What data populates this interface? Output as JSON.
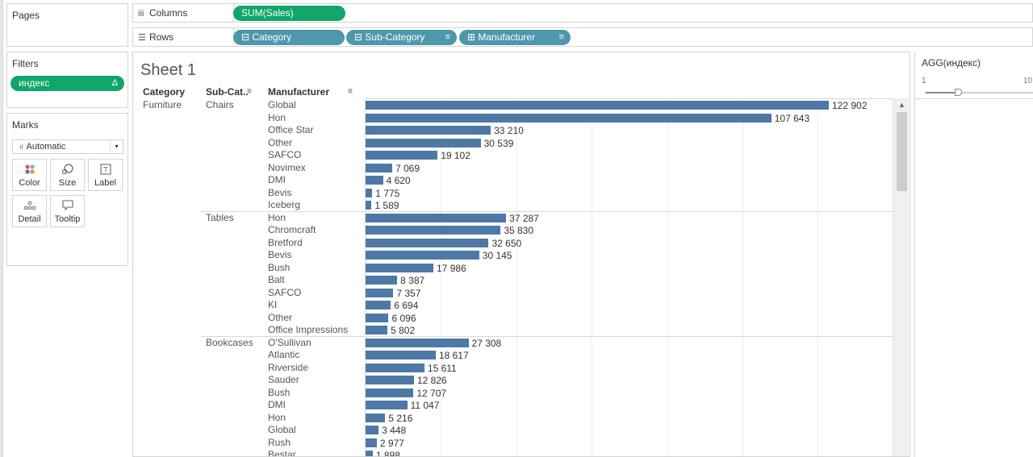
{
  "pages": {
    "title": "Pages"
  },
  "filters": {
    "title": "Filters",
    "pill": "индекс",
    "pill_icon": "Δ"
  },
  "marks": {
    "title": "Marks",
    "type": "Automatic",
    "buttons": {
      "color": "Color",
      "size": "Size",
      "label": "Label",
      "detail": "Detail",
      "tooltip": "Tooltip"
    }
  },
  "shelves": {
    "columns": {
      "label": "Columns",
      "pill": "SUM(Sales)"
    },
    "rows": {
      "label": "Rows",
      "pills": [
        "Category",
        "Sub-Category",
        "Manufacturer"
      ]
    }
  },
  "sheet": {
    "title": "Sheet 1",
    "headers": {
      "category": "Category",
      "subcategory": "Sub-Cat..",
      "manufacturer": "Manufacturer"
    }
  },
  "slider": {
    "title": "AGG(индекс)",
    "min": "1",
    "max": "10",
    "value_fraction": 0.3
  },
  "colors": {
    "bar": "#4e79a7",
    "pill_green": "#10a66a",
    "pill_blue": "#4e97ad"
  },
  "chart_data": {
    "type": "bar",
    "orientation": "horizontal",
    "measure": "SUM(Sales)",
    "category": "Furniture",
    "x_range": [
      0,
      130000
    ],
    "grid": true,
    "groups": [
      {
        "subcategory": "Chairs",
        "rows": [
          {
            "manufacturer": "Global",
            "value": 122902,
            "label": "122 902"
          },
          {
            "manufacturer": "Hon",
            "value": 107643,
            "label": "107 643"
          },
          {
            "manufacturer": "Office Star",
            "value": 33210,
            "label": "33 210"
          },
          {
            "manufacturer": "Other",
            "value": 30539,
            "label": "30 539"
          },
          {
            "manufacturer": "SAFCO",
            "value": 19102,
            "label": "19 102"
          },
          {
            "manufacturer": "Novimex",
            "value": 7069,
            "label": "7 069"
          },
          {
            "manufacturer": "DMI",
            "value": 4620,
            "label": "4 620"
          },
          {
            "manufacturer": "Bevis",
            "value": 1775,
            "label": "1 775"
          },
          {
            "manufacturer": "Iceberg",
            "value": 1589,
            "label": "1 589"
          }
        ]
      },
      {
        "subcategory": "Tables",
        "rows": [
          {
            "manufacturer": "Hon",
            "value": 37287,
            "label": "37 287"
          },
          {
            "manufacturer": "Chromcraft",
            "value": 35830,
            "label": "35 830"
          },
          {
            "manufacturer": "Bretford",
            "value": 32650,
            "label": "32 650"
          },
          {
            "manufacturer": "Bevis",
            "value": 30145,
            "label": "30 145"
          },
          {
            "manufacturer": "Bush",
            "value": 17986,
            "label": "17 986"
          },
          {
            "manufacturer": "Balt",
            "value": 8387,
            "label": "8 387"
          },
          {
            "manufacturer": "SAFCO",
            "value": 7357,
            "label": "7 357"
          },
          {
            "manufacturer": "KI",
            "value": 6694,
            "label": "6 694"
          },
          {
            "manufacturer": "Other",
            "value": 6096,
            "label": "6 096"
          },
          {
            "manufacturer": "Office Impressions",
            "value": 5802,
            "label": "5 802"
          }
        ]
      },
      {
        "subcategory": "Bookcases",
        "rows": [
          {
            "manufacturer": "O'Sullivan",
            "value": 27308,
            "label": "27 308"
          },
          {
            "manufacturer": "Atlantic",
            "value": 18617,
            "label": "18 617"
          },
          {
            "manufacturer": "Riverside",
            "value": 15611,
            "label": "15 611"
          },
          {
            "manufacturer": "Sauder",
            "value": 12826,
            "label": "12 826"
          },
          {
            "manufacturer": "Bush",
            "value": 12707,
            "label": "12 707"
          },
          {
            "manufacturer": "DMI",
            "value": 11047,
            "label": "11 047"
          },
          {
            "manufacturer": "Hon",
            "value": 5216,
            "label": "5 216"
          },
          {
            "manufacturer": "Global",
            "value": 3448,
            "label": "3 448"
          },
          {
            "manufacturer": "Rush",
            "value": 2977,
            "label": "2 977"
          },
          {
            "manufacturer": "Bestar",
            "value": 1898,
            "label": "1 898"
          }
        ]
      }
    ]
  }
}
